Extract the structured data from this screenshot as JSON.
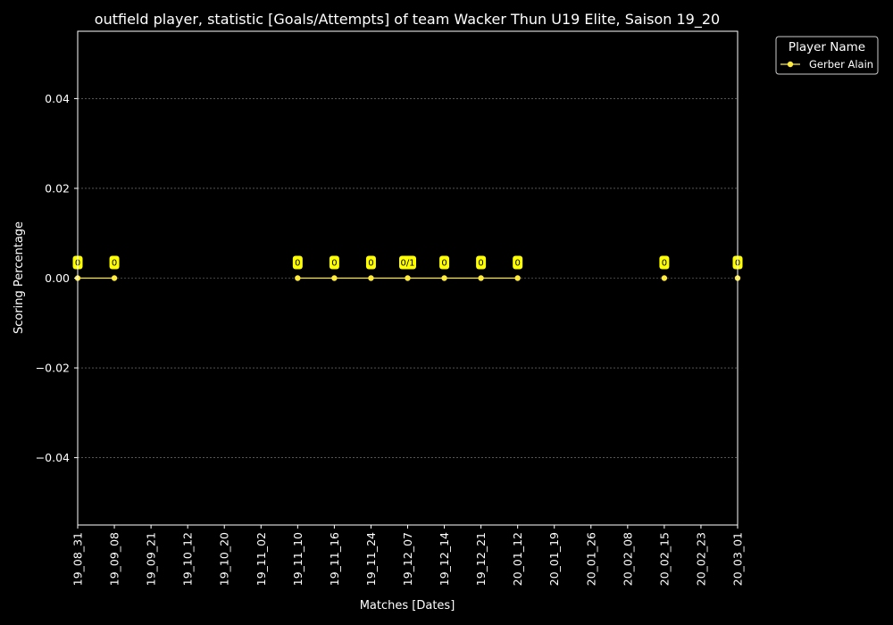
{
  "chart_data": {
    "type": "line",
    "title": "outfield player, statistic [Goals/Attempts] of team Wacker Thun U19 Elite, Saison 19_20",
    "xlabel": "Matches [Dates]",
    "ylabel": "Scoring Percentage",
    "categories": [
      "19_08_31",
      "19_09_08",
      "19_09_21",
      "19_10_12",
      "19_10_20",
      "19_11_02",
      "19_11_10",
      "19_11_16",
      "19_11_24",
      "19_12_07",
      "19_12_14",
      "19_12_21",
      "20_01_12",
      "20_01_19",
      "20_01_26",
      "20_02_08",
      "20_02_15",
      "20_02_23",
      "20_03_01"
    ],
    "ylim": [
      -0.055,
      0.055
    ],
    "yticks": [
      -0.04,
      -0.02,
      0.0,
      0.02,
      0.04
    ],
    "ytick_labels": [
      "−0.04",
      "−0.02",
      "0.00",
      "0.02",
      "0.04"
    ],
    "grid": true,
    "legend_title": "Player Name",
    "legend_position": "outside-top-right",
    "series": [
      {
        "name": "Gerber Alain",
        "color": "#ffeb3b",
        "points": [
          {
            "x": "19_08_31",
            "y": 0,
            "label": "0"
          },
          {
            "x": "19_09_08",
            "y": 0,
            "label": "0"
          },
          {
            "x": "19_11_10",
            "y": 0,
            "label": "0"
          },
          {
            "x": "19_11_16",
            "y": 0,
            "label": "0"
          },
          {
            "x": "19_11_24",
            "y": 0,
            "label": "0"
          },
          {
            "x": "19_12_07",
            "y": 0,
            "label": "0/1"
          },
          {
            "x": "19_12_14",
            "y": 0,
            "label": "0"
          },
          {
            "x": "19_12_21",
            "y": 0,
            "label": "0"
          },
          {
            "x": "20_01_12",
            "y": 0,
            "label": "0"
          },
          {
            "x": "20_02_15",
            "y": 0,
            "label": "0"
          },
          {
            "x": "20_03_01",
            "y": 0,
            "label": "0"
          }
        ]
      }
    ]
  }
}
